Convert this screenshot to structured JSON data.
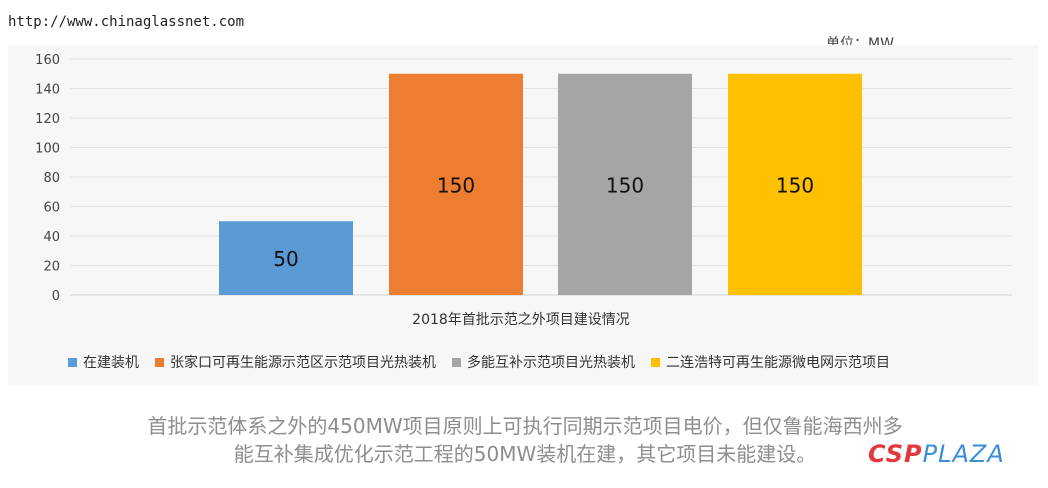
{
  "header": {
    "source_url": "http://www.chinaglassnet.com",
    "unit_label": "单位：MW"
  },
  "chart_data": {
    "type": "bar",
    "title": "",
    "xlabel": "2018年首批示范之外项目建设情况",
    "ylabel": "",
    "ylim": [
      0,
      160
    ],
    "y_ticks": [
      0,
      20,
      40,
      60,
      80,
      100,
      120,
      140,
      160
    ],
    "grid": true,
    "legend_position": "bottom",
    "categories": [
      "在建装机",
      "张家口可再生能源示范区示范项目光热装机",
      "多能互补示范项目光热装机",
      "二连浩特可再生能源微电网示范项目"
    ],
    "values": [
      50,
      150,
      150,
      150
    ],
    "data_labels": [
      "50",
      "150",
      "150",
      "150"
    ],
    "colors": [
      "#5b9bd5",
      "#ed7d31",
      "#a5a5a5",
      "#ffc000"
    ]
  },
  "caption": {
    "line1": "首批示范体系之外的450MW项目原则上可执行同期示范项目电价，但仅鲁能海西州多",
    "line2": "能互补集成优化示范工程的50MW装机在建，其它项目未能建设。"
  },
  "brand": {
    "part1": "CSP",
    "part2": "PLAZA"
  }
}
